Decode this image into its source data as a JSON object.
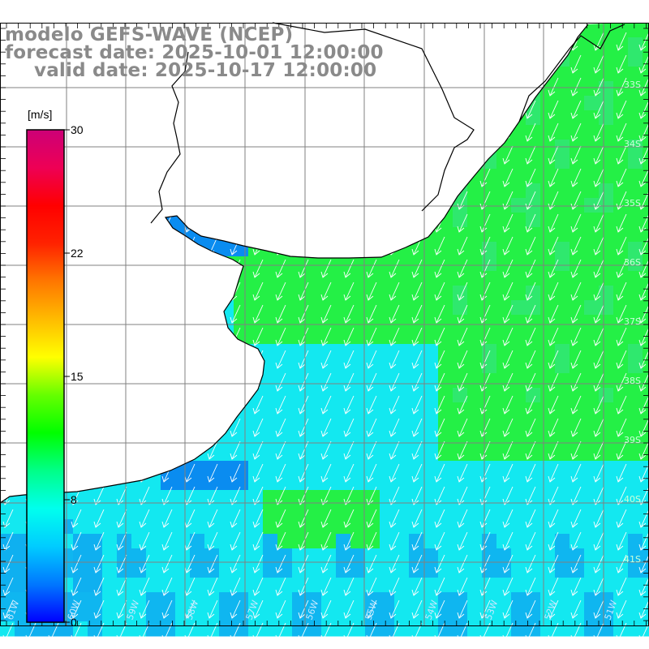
{
  "header": {
    "model_line": "modelo GEFS-WAVE (NCEP)",
    "forecast_line": "forecast date: 2025-10-01 12:00:00",
    "valid_line": "valid date: 2025-10-17 12:00:00"
  },
  "colorbar": {
    "units": "[m/s]",
    "ticks": [
      "30",
      "22",
      "15",
      "8",
      "0"
    ],
    "range": [
      0,
      30
    ],
    "colors": [
      "#0000ff",
      "#0077ff",
      "#00ccff",
      "#00ffee",
      "#00ff88",
      "#00ff00",
      "#66ff00",
      "#ffff00",
      "#ffbb00",
      "#ff7700",
      "#ff2200",
      "#ff0000",
      "#ee0055",
      "#cc0077"
    ]
  },
  "map": {
    "lat_labels": [
      "33S",
      "34S",
      "35S",
      "36S",
      "37S",
      "38S",
      "39S",
      "40S",
      "41S"
    ],
    "lon_labels": [
      "61W",
      "60W",
      "59W",
      "58W",
      "57W",
      "56W",
      "55W",
      "54W",
      "53W",
      "52W",
      "51W"
    ],
    "field_colors": {
      "low": "#0a8cf0",
      "mid": "#13e8f0",
      "high": "#24f046"
    },
    "land_color": "#ffffff",
    "coast_color": "#000000",
    "grid_color": "#808080",
    "vector_color": "#ffffff"
  }
}
